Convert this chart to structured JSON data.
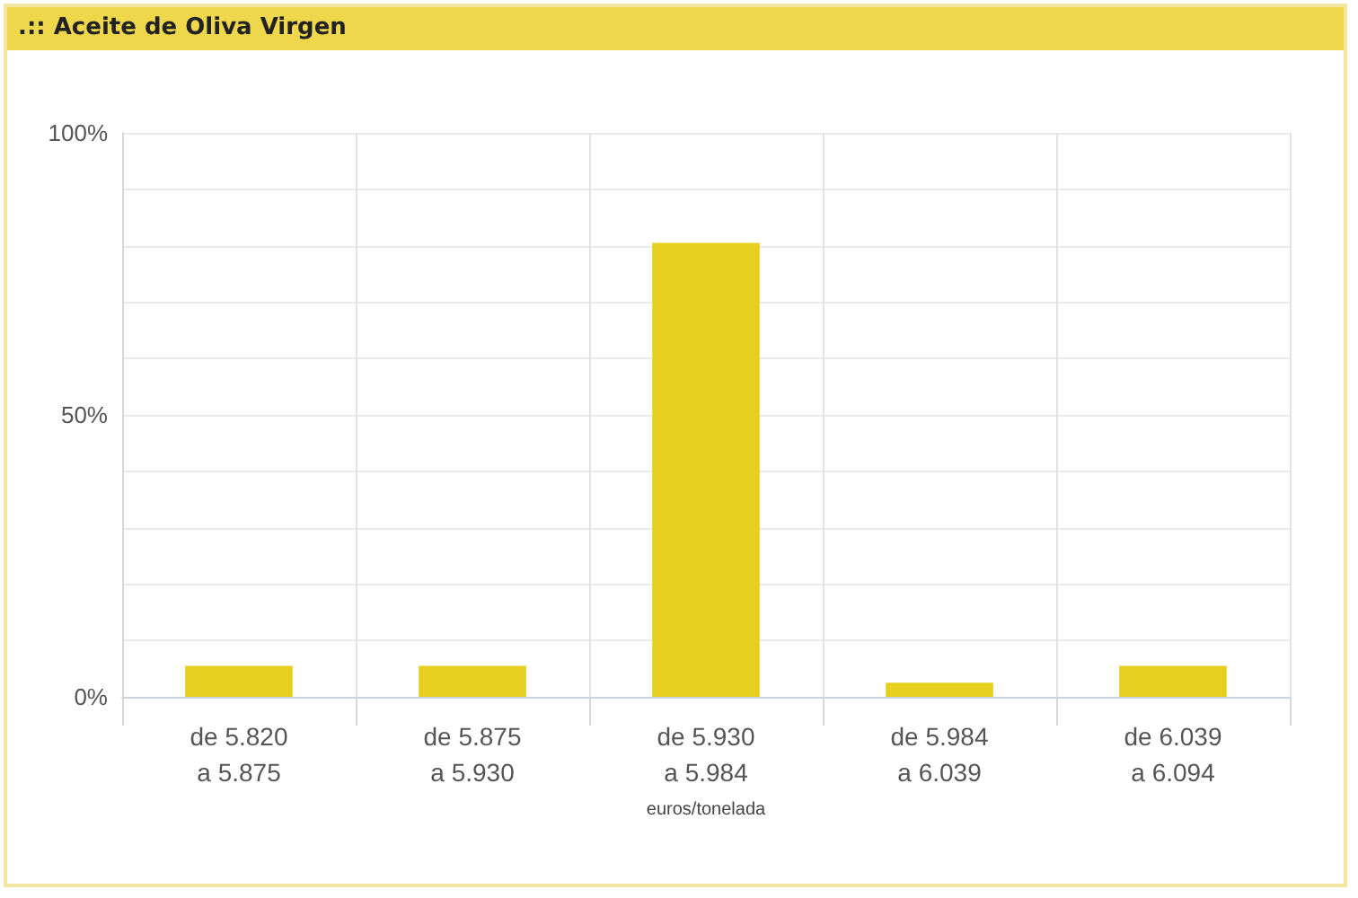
{
  "chart_data": {
    "type": "bar",
    "title": ".:: Aceite de Oliva Virgen",
    "xlabel": "euros/tonelada",
    "categories": [
      "de 5.820\na 5.875",
      "de 5.875\na 5.930",
      "de 5.930\na 5.984",
      "de 5.984\na 6.039",
      "de 6.039\na 6.094"
    ],
    "values": [
      5.5,
      5.5,
      80.5,
      2.5,
      5.5
    ],
    "color": "#e6cf1e",
    "ylim": [
      0,
      100
    ],
    "yticks": [
      {
        "value": 0,
        "label": "0%"
      },
      {
        "value": 10,
        "label": null
      },
      {
        "value": 20,
        "label": null
      },
      {
        "value": 30,
        "label": null
      },
      {
        "value": 40,
        "label": null
      },
      {
        "value": 50,
        "label": "50%"
      },
      {
        "value": 60,
        "label": null
      },
      {
        "value": 70,
        "label": null
      },
      {
        "value": 80,
        "label": null
      },
      {
        "value": 90,
        "label": null
      },
      {
        "value": 100,
        "label": "100%"
      }
    ],
    "grid": true
  }
}
